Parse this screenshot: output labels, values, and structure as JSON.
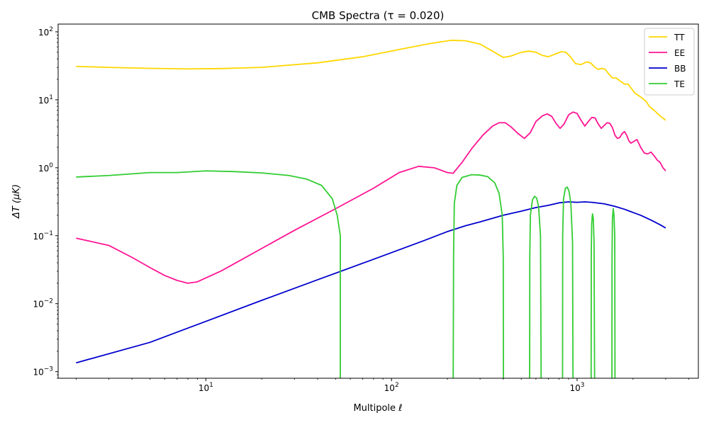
{
  "chart_data": {
    "type": "line",
    "title": "CMB Spectra (τ = 0.020)",
    "xlabel": "Multipole ℓ",
    "ylabel": "ΔT (μK)",
    "xscale": "log",
    "yscale": "log",
    "xlim": [
      1.6,
      4500
    ],
    "ylim": [
      0.0008,
      130
    ],
    "grid": false,
    "legend_position": "top-right",
    "x_ticks": [
      {
        "value": 10,
        "base": "10",
        "exp": "1"
      },
      {
        "value": 100,
        "base": "10",
        "exp": "2"
      },
      {
        "value": 1000,
        "base": "10",
        "exp": "3"
      }
    ],
    "y_ticks": [
      {
        "value": 0.001,
        "base": "10",
        "exp": "−3"
      },
      {
        "value": 0.01,
        "base": "10",
        "exp": "−2"
      },
      {
        "value": 0.1,
        "base": "10",
        "exp": "−1"
      },
      {
        "value": 1,
        "base": "10",
        "exp": "0"
      },
      {
        "value": 10,
        "base": "10",
        "exp": "1"
      },
      {
        "value": 100,
        "base": "10",
        "exp": "2"
      }
    ],
    "series": [
      {
        "name": "TT",
        "color": "#FFD700",
        "points": [
          [
            2,
            31
          ],
          [
            3,
            30
          ],
          [
            5,
            29
          ],
          [
            8,
            28.5
          ],
          [
            12,
            28.8
          ],
          [
            20,
            30
          ],
          [
            40,
            35
          ],
          [
            70,
            43
          ],
          [
            110,
            55
          ],
          [
            160,
            67
          ],
          [
            210,
            75
          ],
          [
            250,
            74
          ],
          [
            300,
            66
          ],
          [
            350,
            52
          ],
          [
            400,
            42
          ],
          [
            440,
            44
          ],
          [
            500,
            50
          ],
          [
            550,
            52
          ],
          [
            600,
            50
          ],
          [
            650,
            45
          ],
          [
            700,
            43
          ],
          [
            760,
            47
          ],
          [
            820,
            51
          ],
          [
            870,
            50
          ],
          [
            920,
            43
          ],
          [
            980,
            34
          ],
          [
            1050,
            33
          ],
          [
            1120,
            36
          ],
          [
            1180,
            35
          ],
          [
            1250,
            30
          ],
          [
            1300,
            28
          ],
          [
            1360,
            29
          ],
          [
            1420,
            28
          ],
          [
            1480,
            24
          ],
          [
            1550,
            21
          ],
          [
            1620,
            21
          ],
          [
            1700,
            19
          ],
          [
            1800,
            17
          ],
          [
            1880,
            17
          ],
          [
            1950,
            15
          ],
          [
            2050,
            12.5
          ],
          [
            2150,
            11.5
          ],
          [
            2250,
            10.5
          ],
          [
            2350,
            9.5
          ],
          [
            2450,
            8
          ],
          [
            2600,
            7
          ],
          [
            2800,
            5.8
          ],
          [
            3000,
            5
          ]
        ]
      },
      {
        "name": "EE",
        "color": "#FF1493",
        "points": [
          [
            2,
            0.092
          ],
          [
            3,
            0.072
          ],
          [
            4,
            0.048
          ],
          [
            5,
            0.034
          ],
          [
            6,
            0.026
          ],
          [
            7,
            0.022
          ],
          [
            8,
            0.02
          ],
          [
            9,
            0.021
          ],
          [
            10,
            0.024
          ],
          [
            12,
            0.03
          ],
          [
            15,
            0.042
          ],
          [
            20,
            0.065
          ],
          [
            30,
            0.12
          ],
          [
            50,
            0.25
          ],
          [
            80,
            0.5
          ],
          [
            110,
            0.85
          ],
          [
            140,
            1.05
          ],
          [
            170,
            1.0
          ],
          [
            200,
            0.85
          ],
          [
            215,
            0.83
          ],
          [
            240,
            1.2
          ],
          [
            270,
            1.9
          ],
          [
            310,
            3.0
          ],
          [
            350,
            4.1
          ],
          [
            380,
            4.6
          ],
          [
            410,
            4.6
          ],
          [
            440,
            4.0
          ],
          [
            480,
            3.2
          ],
          [
            520,
            2.7
          ],
          [
            560,
            3.3
          ],
          [
            600,
            4.8
          ],
          [
            650,
            5.8
          ],
          [
            690,
            6.2
          ],
          [
            730,
            5.7
          ],
          [
            770,
            4.5
          ],
          [
            810,
            3.8
          ],
          [
            850,
            4.4
          ],
          [
            900,
            6.0
          ],
          [
            950,
            6.6
          ],
          [
            1000,
            6.3
          ],
          [
            1050,
            5.0
          ],
          [
            1100,
            4.1
          ],
          [
            1150,
            4.8
          ],
          [
            1200,
            5.5
          ],
          [
            1250,
            5.4
          ],
          [
            1300,
            4.4
          ],
          [
            1350,
            3.8
          ],
          [
            1400,
            4.2
          ],
          [
            1450,
            4.6
          ],
          [
            1500,
            4.5
          ],
          [
            1550,
            3.9
          ],
          [
            1600,
            3.0
          ],
          [
            1650,
            2.7
          ],
          [
            1700,
            2.8
          ],
          [
            1750,
            3.2
          ],
          [
            1800,
            3.4
          ],
          [
            1850,
            3.0
          ],
          [
            1900,
            2.5
          ],
          [
            1950,
            2.3
          ],
          [
            2000,
            2.4
          ],
          [
            2100,
            2.6
          ],
          [
            2200,
            2.0
          ],
          [
            2300,
            1.65
          ],
          [
            2400,
            1.6
          ],
          [
            2500,
            1.7
          ],
          [
            2600,
            1.5
          ],
          [
            2700,
            1.3
          ],
          [
            2800,
            1.2
          ],
          [
            2900,
            1.0
          ],
          [
            3000,
            0.9
          ]
        ]
      },
      {
        "name": "BB",
        "color": "#0000CD",
        "points": [
          [
            2,
            0.00135
          ],
          [
            5,
            0.0027
          ],
          [
            10,
            0.0055
          ],
          [
            20,
            0.0112
          ],
          [
            40,
            0.0225
          ],
          [
            80,
            0.045
          ],
          [
            150,
            0.085
          ],
          [
            200,
            0.115
          ],
          [
            250,
            0.14
          ],
          [
            300,
            0.16
          ],
          [
            400,
            0.2
          ],
          [
            500,
            0.23
          ],
          [
            600,
            0.26
          ],
          [
            700,
            0.28
          ],
          [
            800,
            0.305
          ],
          [
            900,
            0.315
          ],
          [
            1000,
            0.31
          ],
          [
            1100,
            0.315
          ],
          [
            1200,
            0.31
          ],
          [
            1400,
            0.295
          ],
          [
            1600,
            0.27
          ],
          [
            1800,
            0.245
          ],
          [
            2000,
            0.22
          ],
          [
            2200,
            0.2
          ],
          [
            2500,
            0.17
          ],
          [
            2800,
            0.145
          ],
          [
            3000,
            0.13
          ]
        ]
      },
      {
        "name": "TE",
        "color": "#32CD32",
        "segments": [
          [
            [
              2,
              0.73
            ],
            [
              3,
              0.77
            ],
            [
              5,
              0.85
            ],
            [
              7,
              0.85
            ],
            [
              10,
              0.9
            ],
            [
              14,
              0.88
            ],
            [
              20,
              0.84
            ],
            [
              28,
              0.77
            ],
            [
              35,
              0.68
            ],
            [
              42,
              0.55
            ],
            [
              48,
              0.35
            ],
            [
              51,
              0.2
            ],
            [
              53,
              0.1
            ],
            [
              53,
              0.0008
            ]
          ],
          [
            [
              215,
              0.0008
            ],
            [
              216,
              0.05
            ],
            [
              218,
              0.3
            ],
            [
              225,
              0.55
            ],
            [
              240,
              0.72
            ],
            [
              270,
              0.79
            ],
            [
              300,
              0.78
            ],
            [
              330,
              0.74
            ],
            [
              360,
              0.6
            ],
            [
              380,
              0.42
            ],
            [
              395,
              0.2
            ],
            [
              400,
              0.05
            ],
            [
              401,
              0.0008
            ]
          ],
          [
            [
              555,
              0.0008
            ],
            [
              556,
              0.05
            ],
            [
              560,
              0.2
            ],
            [
              575,
              0.34
            ],
            [
              590,
              0.38
            ],
            [
              605,
              0.36
            ],
            [
              620,
              0.27
            ],
            [
              635,
              0.1
            ],
            [
              640,
              0.0008
            ]
          ],
          [
            [
              835,
              0.0008
            ],
            [
              836,
              0.1
            ],
            [
              845,
              0.35
            ],
            [
              865,
              0.5
            ],
            [
              885,
              0.52
            ],
            [
              905,
              0.45
            ],
            [
              925,
              0.3
            ],
            [
              945,
              0.08
            ],
            [
              950,
              0.0008
            ]
          ],
          [
            [
              1190,
              0.0008
            ],
            [
              1192,
              0.05
            ],
            [
              1198,
              0.15
            ],
            [
              1210,
              0.21
            ],
            [
              1222,
              0.18
            ],
            [
              1234,
              0.08
            ],
            [
              1242,
              0.0008
            ]
          ],
          [
            [
              1540,
              0.0008
            ],
            [
              1542,
              0.05
            ],
            [
              1550,
              0.18
            ],
            [
              1565,
              0.25
            ],
            [
              1580,
              0.2
            ],
            [
              1595,
              0.1
            ],
            [
              1600,
              0.0008
            ]
          ]
        ]
      }
    ]
  }
}
